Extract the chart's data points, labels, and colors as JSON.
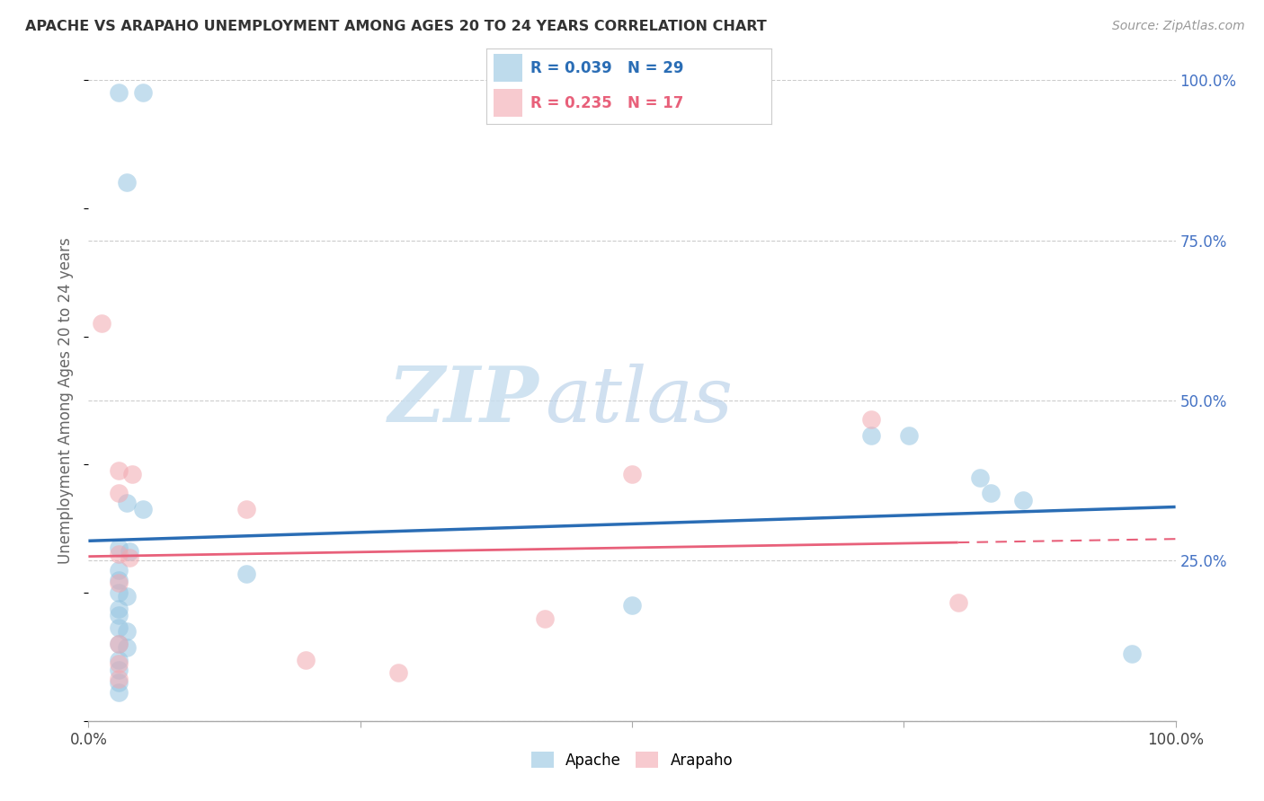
{
  "title": "APACHE VS ARAPAHO UNEMPLOYMENT AMONG AGES 20 TO 24 YEARS CORRELATION CHART",
  "source": "Source: ZipAtlas.com",
  "ylabel": "Unemployment Among Ages 20 to 24 years",
  "xlim": [
    0.0,
    1.0
  ],
  "ylim": [
    0.0,
    1.0
  ],
  "xtick_positions": [
    0.0,
    0.25,
    0.5,
    0.75,
    1.0
  ],
  "xticklabels": [
    "0.0%",
    "",
    "",
    "",
    "100.0%"
  ],
  "ytick_positions": [
    0.0,
    0.25,
    0.5,
    0.75,
    1.0
  ],
  "ytick_labels_right": [
    "",
    "25.0%",
    "50.0%",
    "75.0%",
    "100.0%"
  ],
  "apache_color": "#94C4E0",
  "arapaho_color": "#F2A8B0",
  "apache_line_color": "#2A6DB5",
  "arapaho_line_color": "#E8607A",
  "apache_r": 0.039,
  "apache_n": 29,
  "arapaho_r": 0.235,
  "arapaho_n": 17,
  "apache_points": [
    [
      0.028,
      0.98
    ],
    [
      0.05,
      0.98
    ],
    [
      0.035,
      0.84
    ],
    [
      0.035,
      0.34
    ],
    [
      0.05,
      0.33
    ],
    [
      0.028,
      0.27
    ],
    [
      0.038,
      0.265
    ],
    [
      0.028,
      0.235
    ],
    [
      0.028,
      0.22
    ],
    [
      0.028,
      0.2
    ],
    [
      0.035,
      0.195
    ],
    [
      0.028,
      0.175
    ],
    [
      0.028,
      0.165
    ],
    [
      0.028,
      0.145
    ],
    [
      0.035,
      0.14
    ],
    [
      0.028,
      0.12
    ],
    [
      0.035,
      0.115
    ],
    [
      0.028,
      0.095
    ],
    [
      0.028,
      0.08
    ],
    [
      0.028,
      0.06
    ],
    [
      0.028,
      0.045
    ],
    [
      0.145,
      0.23
    ],
    [
      0.5,
      0.18
    ],
    [
      0.72,
      0.445
    ],
    [
      0.755,
      0.445
    ],
    [
      0.82,
      0.38
    ],
    [
      0.83,
      0.355
    ],
    [
      0.86,
      0.345
    ],
    [
      0.96,
      0.105
    ]
  ],
  "arapaho_points": [
    [
      0.012,
      0.62
    ],
    [
      0.028,
      0.39
    ],
    [
      0.04,
      0.385
    ],
    [
      0.028,
      0.355
    ],
    [
      0.028,
      0.26
    ],
    [
      0.038,
      0.255
    ],
    [
      0.028,
      0.215
    ],
    [
      0.028,
      0.12
    ],
    [
      0.028,
      0.09
    ],
    [
      0.028,
      0.065
    ],
    [
      0.145,
      0.33
    ],
    [
      0.2,
      0.095
    ],
    [
      0.285,
      0.075
    ],
    [
      0.42,
      0.16
    ],
    [
      0.5,
      0.385
    ],
    [
      0.72,
      0.47
    ],
    [
      0.8,
      0.185
    ]
  ],
  "watermark_zip": "ZIP",
  "watermark_atlas": "atlas",
  "background_color": "#ffffff",
  "grid_color": "#cccccc",
  "legend_apache_text": "R = 0.039   N = 29",
  "legend_arapaho_text": "R = 0.235   N = 17"
}
